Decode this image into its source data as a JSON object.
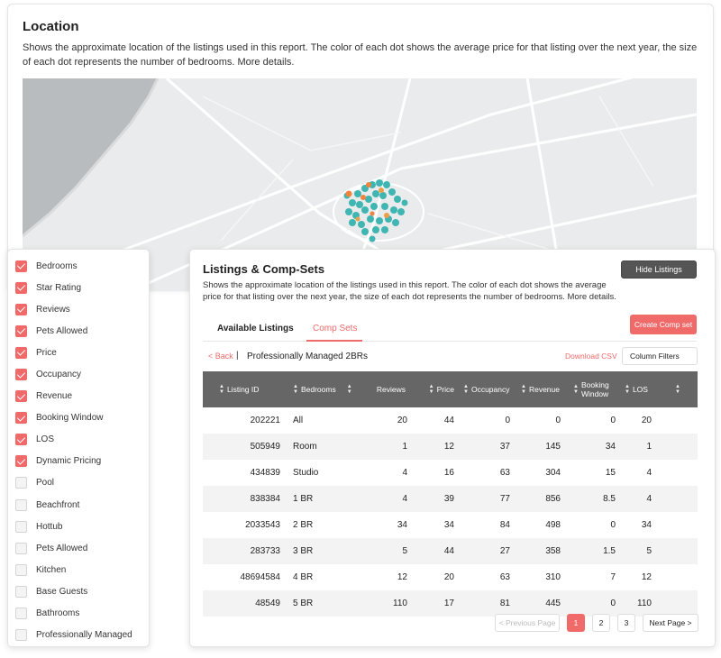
{
  "location": {
    "title": "Location",
    "description": "Shows the approximate location of the listings used in this report. The color of each dot shows the average price for that listing over the next year, the size of each dot represents the number of bedrooms. More details."
  },
  "filters": [
    {
      "label": "Bedrooms",
      "checked": true
    },
    {
      "label": "Star Rating",
      "checked": true
    },
    {
      "label": "Reviews",
      "checked": true
    },
    {
      "label": "Pets Allowed",
      "checked": true
    },
    {
      "label": "Price",
      "checked": true
    },
    {
      "label": "Occupancy",
      "checked": true
    },
    {
      "label": "Revenue",
      "checked": true
    },
    {
      "label": "Booking Window",
      "checked": true
    },
    {
      "label": "LOS",
      "checked": true
    },
    {
      "label": "Dynamic Pricing",
      "checked": true
    },
    {
      "label": "Pool",
      "checked": false
    },
    {
      "label": "Beachfront",
      "checked": false
    },
    {
      "label": "Hottub",
      "checked": false
    },
    {
      "label": "Pets Allowed",
      "checked": false
    },
    {
      "label": "Kitchen",
      "checked": false
    },
    {
      "label": "Base Guests",
      "checked": false
    },
    {
      "label": "Bathrooms",
      "checked": false
    },
    {
      "label": "Professionally Managed",
      "checked": false
    }
  ],
  "listings": {
    "title": "Listings & Comp-Sets",
    "hide_button": "Hide Listings",
    "description": "Shows the approximate location of the listings used in this report. The color of each dot shows the average price for that listing over the next year, the size of each dot represents the number of bedrooms. More details.",
    "tabs": {
      "available": "Available Listings",
      "comp_sets": "Comp Sets"
    },
    "create_button": "Create Comp set",
    "back": "< Back",
    "separator": "|",
    "set_name": "Professionally Managed 2BRs",
    "download_csv": "Download CSV",
    "column_filters": "Column Filters"
  },
  "table": {
    "headers": {
      "listing_id": "Listing ID",
      "bedrooms": "Bedrooms",
      "reviews": "Reviews",
      "price": "Price",
      "occupancy": "Occupancy",
      "revenue": "Revenue",
      "booking_window": "Booking Window",
      "los": "LOS"
    },
    "rows": [
      {
        "id": "202221",
        "bedrooms": "All",
        "reviews": "20",
        "price": "44",
        "occupancy": "0",
        "revenue": "0",
        "booking_window": "0",
        "los": "20"
      },
      {
        "id": "505949",
        "bedrooms": "Room",
        "reviews": "1",
        "price": "12",
        "occupancy": "37",
        "revenue": "145",
        "booking_window": "34",
        "los": "1"
      },
      {
        "id": "434839",
        "bedrooms": "Studio",
        "reviews": "4",
        "price": "16",
        "occupancy": "63",
        "revenue": "304",
        "booking_window": "15",
        "los": "4"
      },
      {
        "id": "838384",
        "bedrooms": "1 BR",
        "reviews": "4",
        "price": "39",
        "occupancy": "77",
        "revenue": "856",
        "booking_window": "8.5",
        "los": "4"
      },
      {
        "id": "2033543",
        "bedrooms": "2 BR",
        "reviews": "34",
        "price": "34",
        "occupancy": "84",
        "revenue": "498",
        "booking_window": "0",
        "los": "34"
      },
      {
        "id": "283733",
        "bedrooms": "3 BR",
        "reviews": "5",
        "price": "44",
        "occupancy": "27",
        "revenue": "358",
        "booking_window": "1.5",
        "los": "5"
      },
      {
        "id": "48694584",
        "bedrooms": "4 BR",
        "reviews": "12",
        "price": "20",
        "occupancy": "63",
        "revenue": "310",
        "booking_window": "7",
        "los": "12"
      },
      {
        "id": "48549",
        "bedrooms": "5 BR",
        "reviews": "110",
        "price": "17",
        "occupancy": "81",
        "revenue": "445",
        "booking_window": "0",
        "los": "110"
      }
    ]
  },
  "pagination": {
    "previous": "< Previous Page",
    "pages": [
      "1",
      "2",
      "3"
    ],
    "active_page": "1",
    "next": "Next Page >"
  },
  "colors": {
    "accent": "#f06a6a",
    "header_bg": "#666666",
    "map_water": "#b8bcbf",
    "map_land": "#e9ebec",
    "dot_teal": "#3fb6b2",
    "dot_orange": "#f0843c"
  }
}
